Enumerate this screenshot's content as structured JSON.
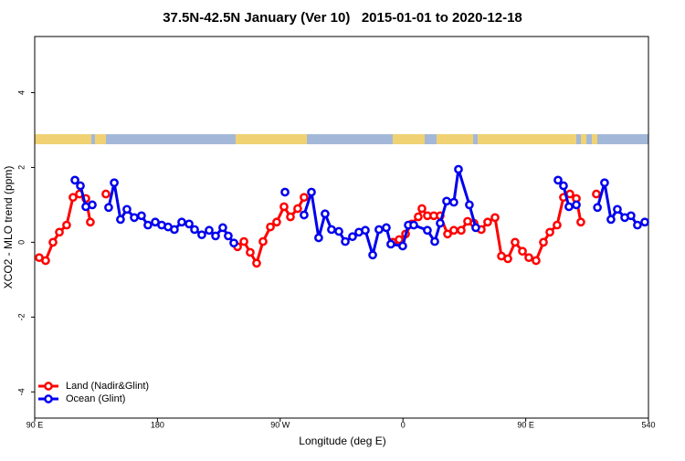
{
  "chart_data": {
    "type": "line",
    "title": "37.5N-42.5N January (Ver 10)   2015-01-01 to 2020-12-18",
    "x_label": "Longitude (deg E)",
    "y_label": "XCO2 - MLO trend (ppm)",
    "xlim": [
      90,
      540
    ],
    "ylim": [
      -4.7,
      5.5
    ],
    "xticks": [
      {
        "value": 90,
        "label": "90 E"
      },
      180,
      {
        "value": 270,
        "label": "90 W"
      },
      {
        "value": 360,
        "label": "0"
      },
      {
        "value": 450,
        "label": "90 E"
      },
      540
    ],
    "yticks": [
      -4,
      -2,
      0,
      2,
      4
    ],
    "legend": "bottom-left",
    "series": [
      {
        "name": "Land (Nadir&Glint)",
        "color": "#ff0000",
        "x": [
          93.3,
          98.0,
          103.4,
          108.1,
          113.4,
          118.1,
          122.8,
          127.5,
          130.8,
          null,
          142.2,
          null,
          238.7,
          243.4,
          248.0,
          252.7,
          257.4,
          262.8,
          267.4,
          272.8,
          277.5,
          282.8,
          287.5,
          null,
          352.5,
          357.2,
          361.9,
          366.5,
          371.2,
          373.9,
          377.9,
          382.6,
          387.3,
          392.7,
          397.3,
          402.7,
          407.4,
          412.1,
          417.4,
          422.1,
          427.5,
          432.2,
          436.9,
          442.2,
          447.6,
          452.3,
          457.6,
          463.0,
          467.7,
          473.0,
          477.7,
          482.4,
          487.1,
          490.4,
          null,
          501.8
        ],
        "values": [
          -0.41,
          -0.49,
          0,
          0.27,
          0.46,
          1.2,
          1.29,
          1.17,
          0.54,
          null,
          1.29,
          null,
          -0.12,
          0.02,
          -0.27,
          -0.56,
          0.02,
          0.41,
          0.54,
          0.95,
          0.68,
          0.9,
          1.2,
          null,
          0,
          0.07,
          0.22,
          0.49,
          0.68,
          0.9,
          0.71,
          0.71,
          0.71,
          0.22,
          0.32,
          0.32,
          0.56,
          0.51,
          0.34,
          0.54,
          0.66,
          -0.37,
          -0.44,
          0,
          -0.24,
          -0.41,
          -0.49,
          0,
          0.27,
          0.46,
          1.2,
          1.29,
          1.17,
          0.54,
          null,
          1.29
        ]
      },
      {
        "name": "Ocean (Glint)",
        "color": "#0000ee",
        "x": [
          119.5,
          123.5,
          127.5,
          132.2,
          null,
          144.2,
          148.3,
          152.9,
          157.6,
          163.0,
          168.3,
          173.0,
          178.4,
          183.1,
          187.8,
          192.4,
          197.8,
          203.2,
          207.2,
          212.5,
          217.9,
          222.6,
          227.9,
          231.9,
          236.0,
          null,
          273.5,
          null,
          287.5,
          292.9,
          298.2,
          302.9,
          307.6,
          313.0,
          317.7,
          323.0,
          327.7,
          332.4,
          337.8,
          342.4,
          347.8,
          351.1,
          359.8,
          363.9,
          367.9,
          377.9,
          383.3,
          387.3,
          392.0,
          397.3,
          400.7,
          408.7,
          413.4,
          null,
          473.7,
          477.7,
          481.7,
          487.1,
          null,
          502.6,
          507.8,
          512.5,
          517.2,
          522.6,
          527.2,
          531.9,
          537.3
        ],
        "values": [
          1.66,
          1.51,
          0.95,
          1.0,
          null,
          0.93,
          1.59,
          0.61,
          0.88,
          0.66,
          0.71,
          0.46,
          0.54,
          0.46,
          0.41,
          0.34,
          0.54,
          0.49,
          0.34,
          0.2,
          0.32,
          0.17,
          0.39,
          0.17,
          -0.02,
          null,
          1.34,
          null,
          0.73,
          1.34,
          0.12,
          0.76,
          0.34,
          0.29,
          0.02,
          0.15,
          0.27,
          0.32,
          -0.34,
          0.34,
          0.39,
          -0.05,
          -0.1,
          0.46,
          0.46,
          0.32,
          0.02,
          0.51,
          1.1,
          1.07,
          1.95,
          1.0,
          0.39,
          null,
          1.66,
          1.51,
          0.95,
          1.0,
          null,
          0.93,
          1.59,
          0.61,
          0.88,
          0.66,
          0.71,
          0.46,
          0.54
        ]
      }
    ]
  }
}
